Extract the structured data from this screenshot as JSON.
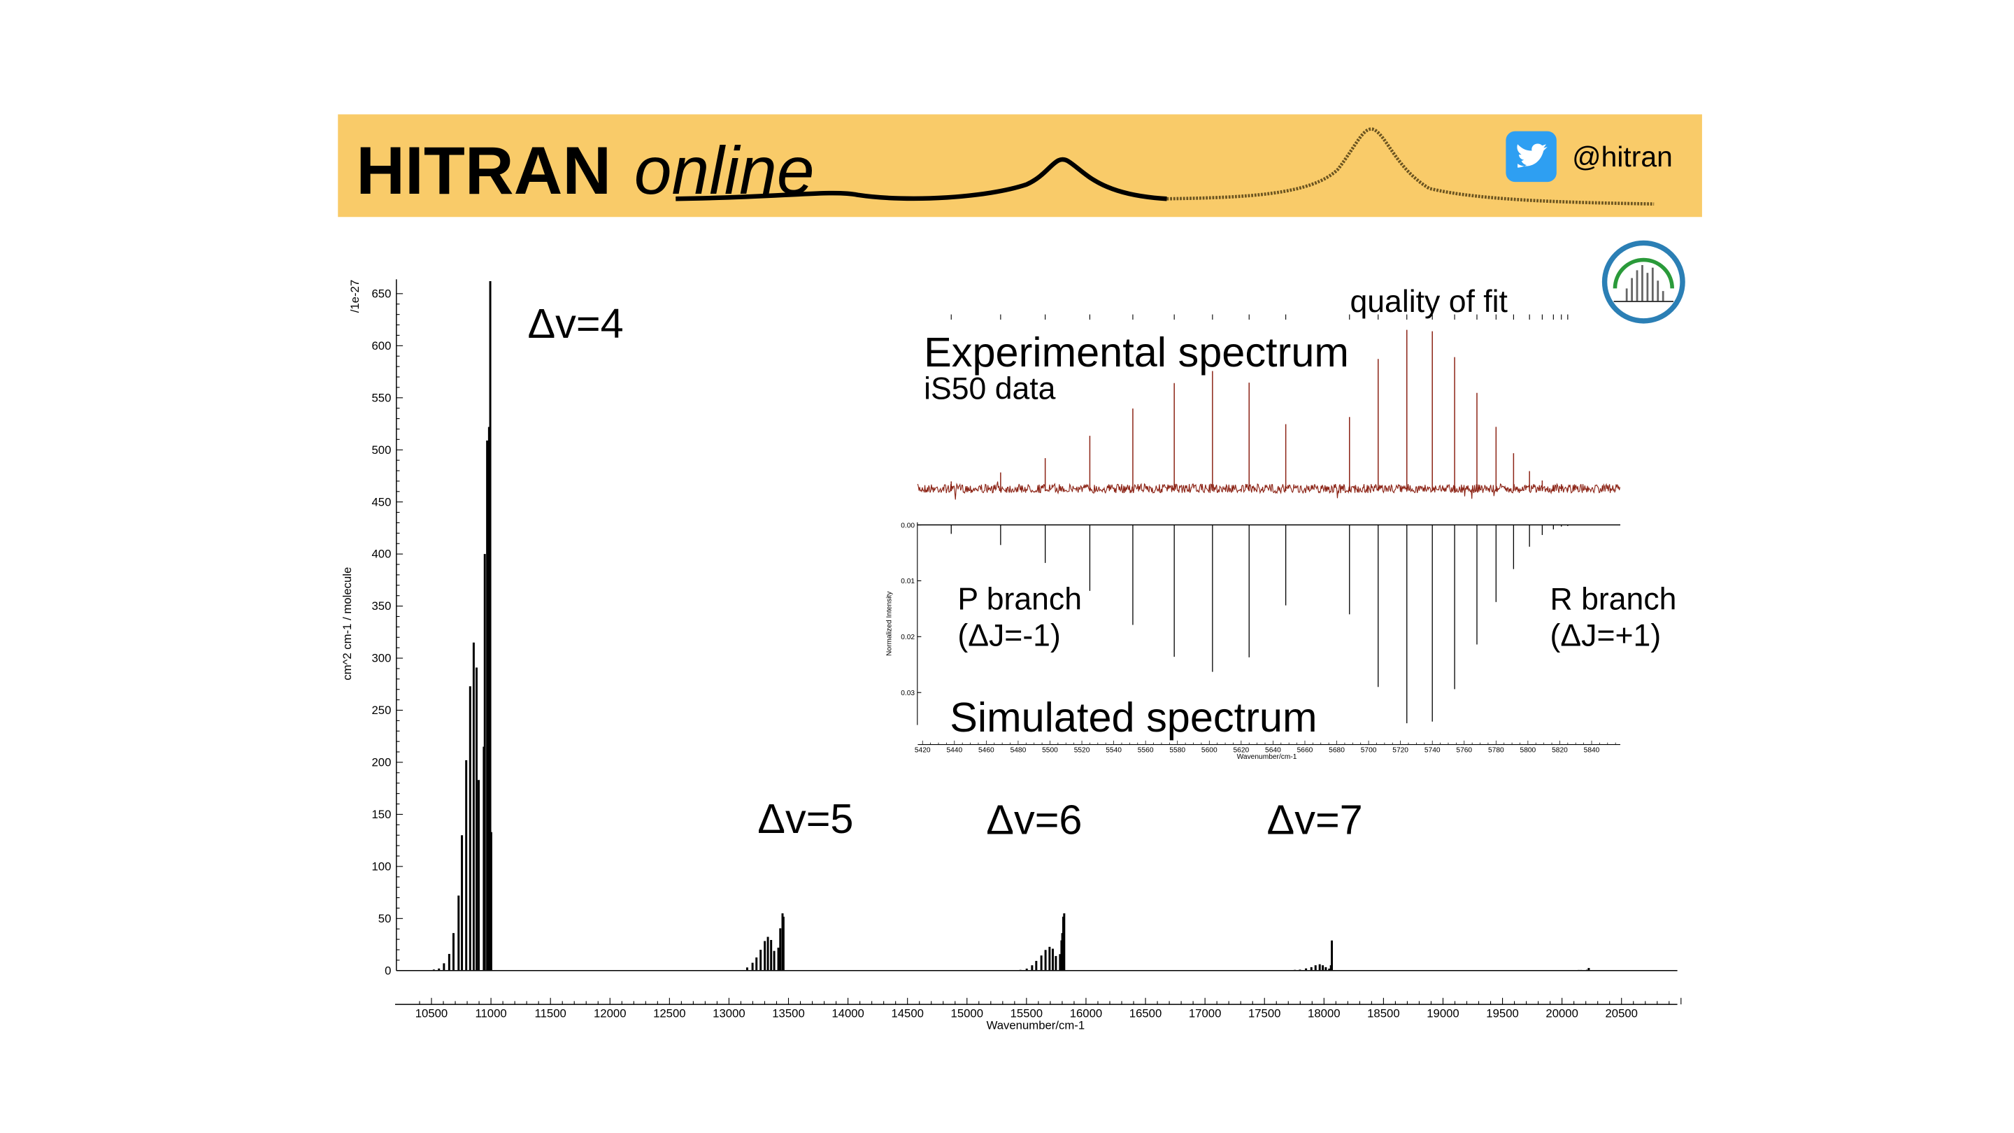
{
  "banner": {
    "logo_bold": "HITRAN",
    "logo_italic": "online",
    "twitter_handle": "@hitran",
    "icon": "twitter-bird-icon",
    "background_color": "#f9cb69",
    "twitter_color": "#2e9ff2"
  },
  "colors": {
    "experimental": "#8b2214",
    "simulated": "#000000"
  },
  "annotations": {
    "dv4": "Δv=4",
    "dv5": "Δv=5",
    "dv6": "Δv=6",
    "dv7": "Δv=7",
    "experimental": "Experimental spectrum",
    "instrument": "iS50 data",
    "quality": "quality of fit",
    "p_branch": "P branch",
    "p_rule": "(ΔJ=-1)",
    "r_branch": "R branch",
    "r_rule": "(ΔJ=+1)",
    "simulated": "Simulated spectrum"
  },
  "chart_data": [
    {
      "type": "bar",
      "xlabel": "Wavenumber/cm-1",
      "ylabel": "cm^2 cm-1 / molecule",
      "yscale_label": "/1e-27",
      "xlim": [
        10350,
        21100
      ],
      "ylim": [
        0,
        660
      ],
      "xticks": [
        10500,
        11000,
        11500,
        12000,
        12500,
        13000,
        13500,
        14000,
        14500,
        15000,
        15500,
        16000,
        16500,
        17000,
        17500,
        18000,
        18500,
        19000,
        19500,
        20000,
        20500
      ],
      "yticks": [
        0,
        50,
        100,
        150,
        200,
        250,
        300,
        350,
        400,
        450,
        500,
        550,
        600,
        650
      ],
      "series": [
        {
          "band": "Δv=4",
          "x": [
            10520,
            10563,
            10605,
            10649,
            10685,
            10728,
            10756,
            10792,
            10825,
            10855,
            10879,
            10897,
            10940,
            10948,
            10968,
            10984,
            10994,
            11002
          ],
          "y": [
            1,
            2,
            7,
            16,
            36,
            72,
            130,
            202,
            273,
            315,
            291,
            183,
            215,
            400,
            509,
            522,
            662,
            133
          ]
        },
        {
          "band": "Δv=5",
          "x": [
            13153,
            13198,
            13231,
            13266,
            13301,
            13327,
            13354,
            13380,
            13415,
            13431,
            13450,
            13458
          ],
          "y": [
            3,
            7.5,
            12.6,
            20,
            28.4,
            32.4,
            29.4,
            18.9,
            22,
            40.6,
            55,
            51.7
          ]
        },
        {
          "band": "Δv=6",
          "x": [
            15449,
            15502,
            15547,
            15582,
            15625,
            15660,
            15694,
            15721,
            15747,
            15782,
            15794,
            15801,
            15809,
            15817
          ],
          "y": [
            0.7,
            1.9,
            5.1,
            9.3,
            14.5,
            19.8,
            22.8,
            21,
            14,
            15.8,
            29,
            36,
            51.7,
            55
          ]
        },
        {
          "band": "Δv=7",
          "x": [
            17755,
            17798,
            17849,
            17894,
            17929,
            17964,
            17990,
            18015,
            18044,
            18058,
            18066
          ],
          "y": [
            0.7,
            0.9,
            2.1,
            3.3,
            5.1,
            6.1,
            5.1,
            3.3,
            1.9,
            5.1,
            28.9
          ]
        },
        {
          "band": "",
          "x": [
            20040,
            20080,
            20110,
            20140,
            20160,
            20180,
            20210,
            20225
          ],
          "y": [
            0.3,
            0.4,
            0.5,
            0.6,
            0.6,
            0.5,
            0.8,
            2.5
          ]
        }
      ]
    },
    {
      "type": "bar",
      "xlabel": "Wavenumber/cm-1",
      "ylabel": "Normalized Intensity",
      "xlim": [
        5417,
        5858
      ],
      "ylim": [
        0,
        0.036
      ],
      "y_inverted": true,
      "xticks": [
        5420,
        5440,
        5460,
        5480,
        5500,
        5520,
        5540,
        5560,
        5580,
        5600,
        5620,
        5640,
        5660,
        5680,
        5700,
        5720,
        5740,
        5760,
        5780,
        5800,
        5820,
        5840
      ],
      "yticks": [
        "0.00",
        "0.01",
        "0.02",
        "0.03"
      ],
      "simulated": {
        "x": [
          5438,
          5469,
          5497,
          5525,
          5552,
          5578,
          5602,
          5625,
          5648,
          5688,
          5706,
          5724,
          5740,
          5754,
          5768,
          5780,
          5791,
          5801,
          5809,
          5816,
          5821,
          5825
        ],
        "y": [
          0.0016,
          0.0036,
          0.0068,
          0.0118,
          0.0179,
          0.0236,
          0.0263,
          0.0237,
          0.0144,
          0.016,
          0.029,
          0.0355,
          0.0352,
          0.0294,
          0.0214,
          0.0138,
          0.0079,
          0.0039,
          0.0018,
          0.0008,
          0.0003,
          0.0002
        ]
      }
    }
  ]
}
